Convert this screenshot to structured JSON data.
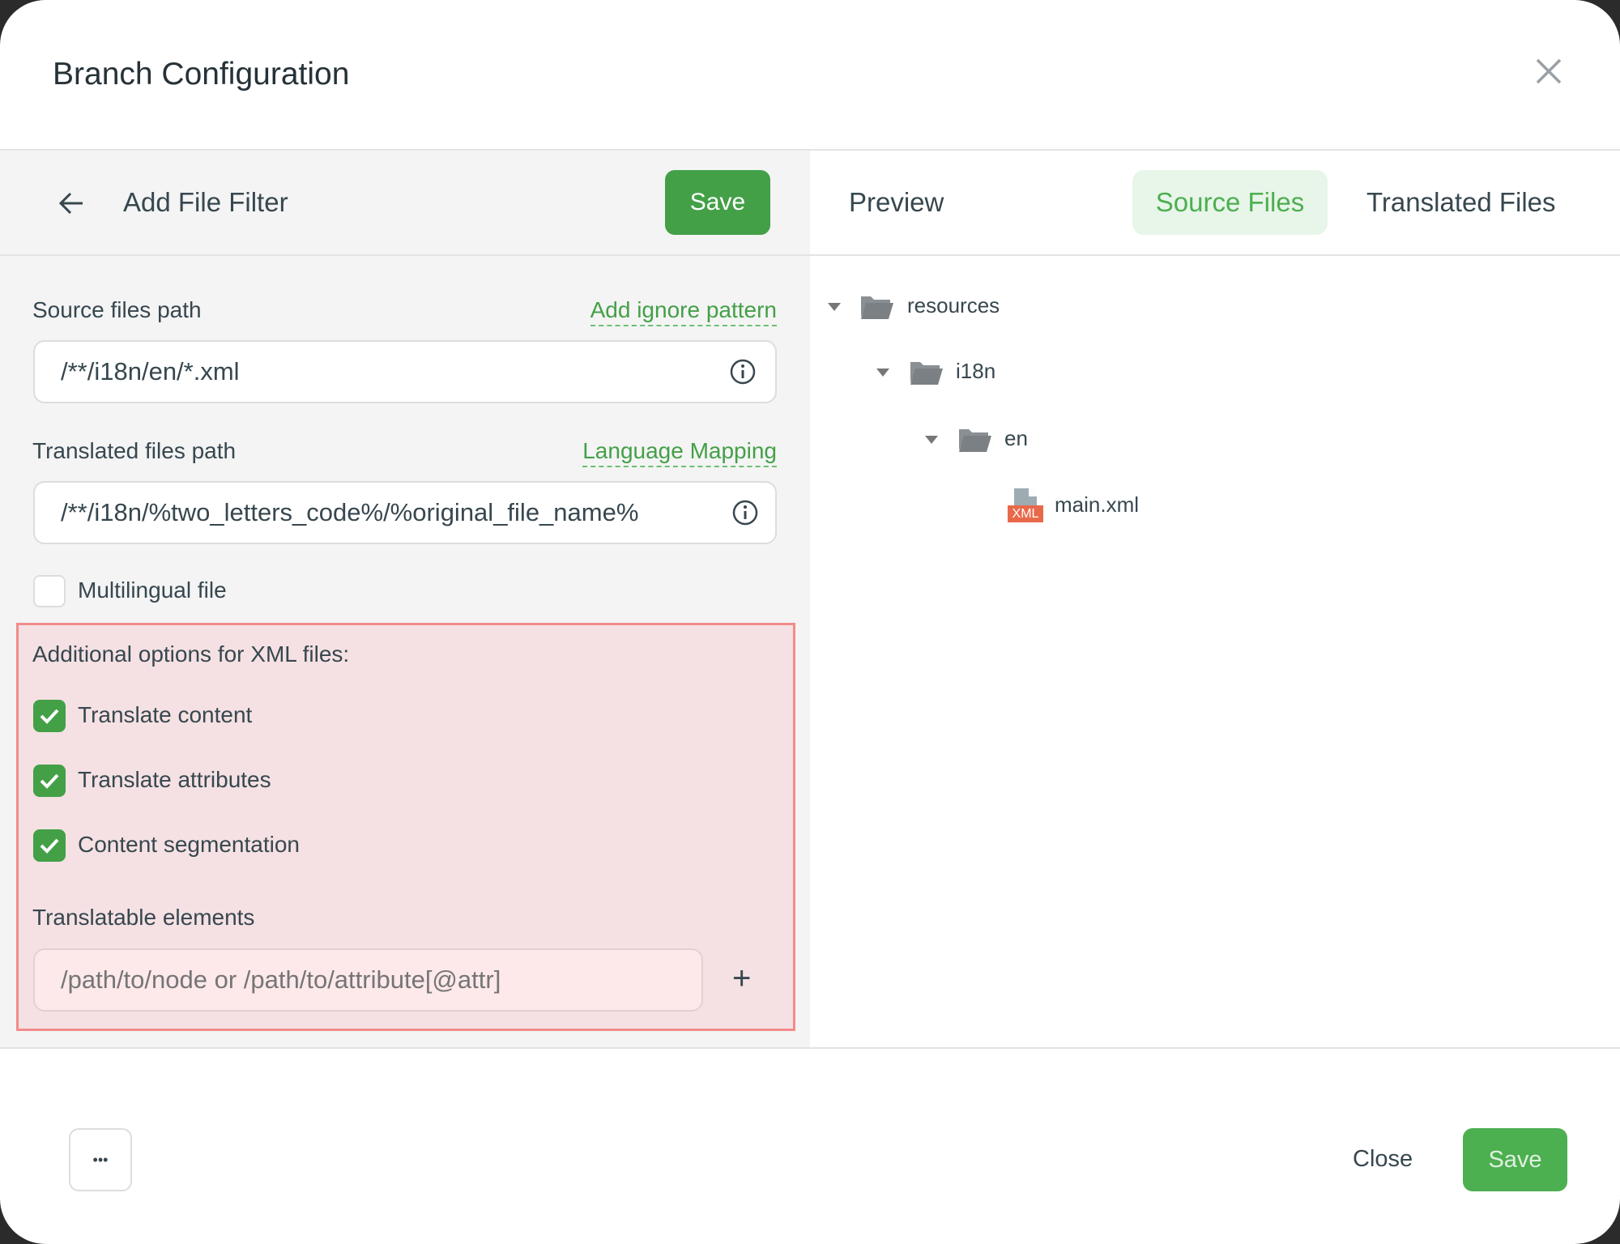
{
  "dialog": {
    "title": "Branch Configuration"
  },
  "filter": {
    "title": "Add File Filter",
    "save_label": "Save",
    "source_label": "Source files path",
    "source_link": "Add ignore pattern",
    "source_value": "/**/i18n/en/*.xml",
    "translated_label": "Translated files path",
    "translated_link": "Language Mapping",
    "translated_value": "/**/i18n/%two_letters_code%/%original_file_name%",
    "multilingual_label": "Multilingual file",
    "multilingual_checked": false,
    "xml_options": {
      "heading": "Additional options for XML files:",
      "options": [
        {
          "label": "Translate content",
          "checked": true
        },
        {
          "label": "Translate attributes",
          "checked": true
        },
        {
          "label": "Content segmentation",
          "checked": true
        }
      ],
      "elements_label": "Translatable elements",
      "elements_placeholder": "/path/to/node or /path/to/attribute[@attr]",
      "add_symbol": "+"
    }
  },
  "preview": {
    "title": "Preview",
    "tabs": [
      {
        "label": "Source Files",
        "active": true
      },
      {
        "label": "Translated Files",
        "active": false
      }
    ],
    "tree": [
      {
        "name": "resources",
        "type": "folder",
        "expanded": true
      },
      {
        "name": "i18n",
        "type": "folder",
        "expanded": true
      },
      {
        "name": "en",
        "type": "folder",
        "expanded": true
      },
      {
        "name": "main.xml",
        "type": "file",
        "badge": "XML"
      }
    ]
  },
  "footer": {
    "more_label": "•••",
    "close_label": "Close",
    "save_label": "Save"
  },
  "colors": {
    "accent": "#43a047",
    "highlight_border": "#f28b8b",
    "highlight_bg": "#f5e1e3",
    "xml_badge": "#e8694a"
  }
}
